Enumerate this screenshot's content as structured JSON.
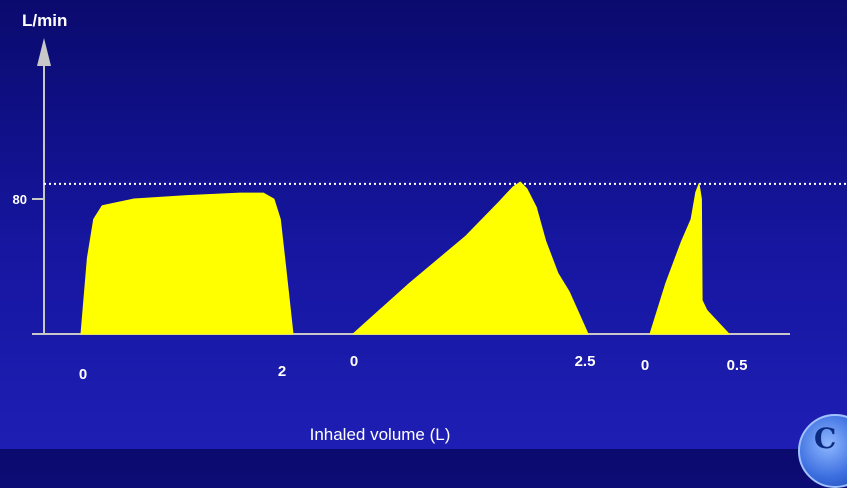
{
  "chart_data": {
    "type": "area",
    "ylabel": "L/min",
    "xlabel": "Inhaled volume (L)",
    "y_ticks": [
      {
        "value": 80,
        "label": "80"
      }
    ],
    "reference_line": {
      "value": 89,
      "style": "dotted"
    },
    "fill_color": "#ffff00",
    "axis_color": "#c8c8c8",
    "series": [
      {
        "x_ticks": [
          "0",
          "2"
        ],
        "xlim": [
          0,
          2
        ],
        "points": [
          [
            0,
            0
          ],
          [
            0.06,
            45
          ],
          [
            0.12,
            68
          ],
          [
            0.2,
            76
          ],
          [
            0.5,
            80
          ],
          [
            1.0,
            82
          ],
          [
            1.5,
            83.5
          ],
          [
            1.72,
            83.5
          ],
          [
            1.82,
            80
          ],
          [
            1.88,
            68
          ],
          [
            1.93,
            40
          ],
          [
            2,
            0
          ]
        ]
      },
      {
        "x_ticks": [
          "0",
          "2.5"
        ],
        "xlim": [
          0,
          2.5
        ],
        "points": [
          [
            0,
            0
          ],
          [
            0.6,
            30
          ],
          [
            1.2,
            58
          ],
          [
            1.55,
            78
          ],
          [
            1.7,
            87
          ],
          [
            1.78,
            90
          ],
          [
            1.85,
            86
          ],
          [
            1.95,
            75
          ],
          [
            2.05,
            55
          ],
          [
            2.18,
            36
          ],
          [
            2.3,
            25
          ],
          [
            2.42,
            10
          ],
          [
            2.5,
            0
          ]
        ]
      },
      {
        "x_ticks": [
          "0",
          "0.5"
        ],
        "xlim": [
          0,
          0.5
        ],
        "points": [
          [
            0,
            0
          ],
          [
            0.1,
            30
          ],
          [
            0.2,
            55
          ],
          [
            0.26,
            68
          ],
          [
            0.29,
            84
          ],
          [
            0.31,
            89
          ],
          [
            0.325,
            80
          ],
          [
            0.33,
            20
          ],
          [
            0.36,
            14
          ],
          [
            0.5,
            0
          ]
        ]
      }
    ]
  },
  "logo": {
    "glyph": "C"
  }
}
